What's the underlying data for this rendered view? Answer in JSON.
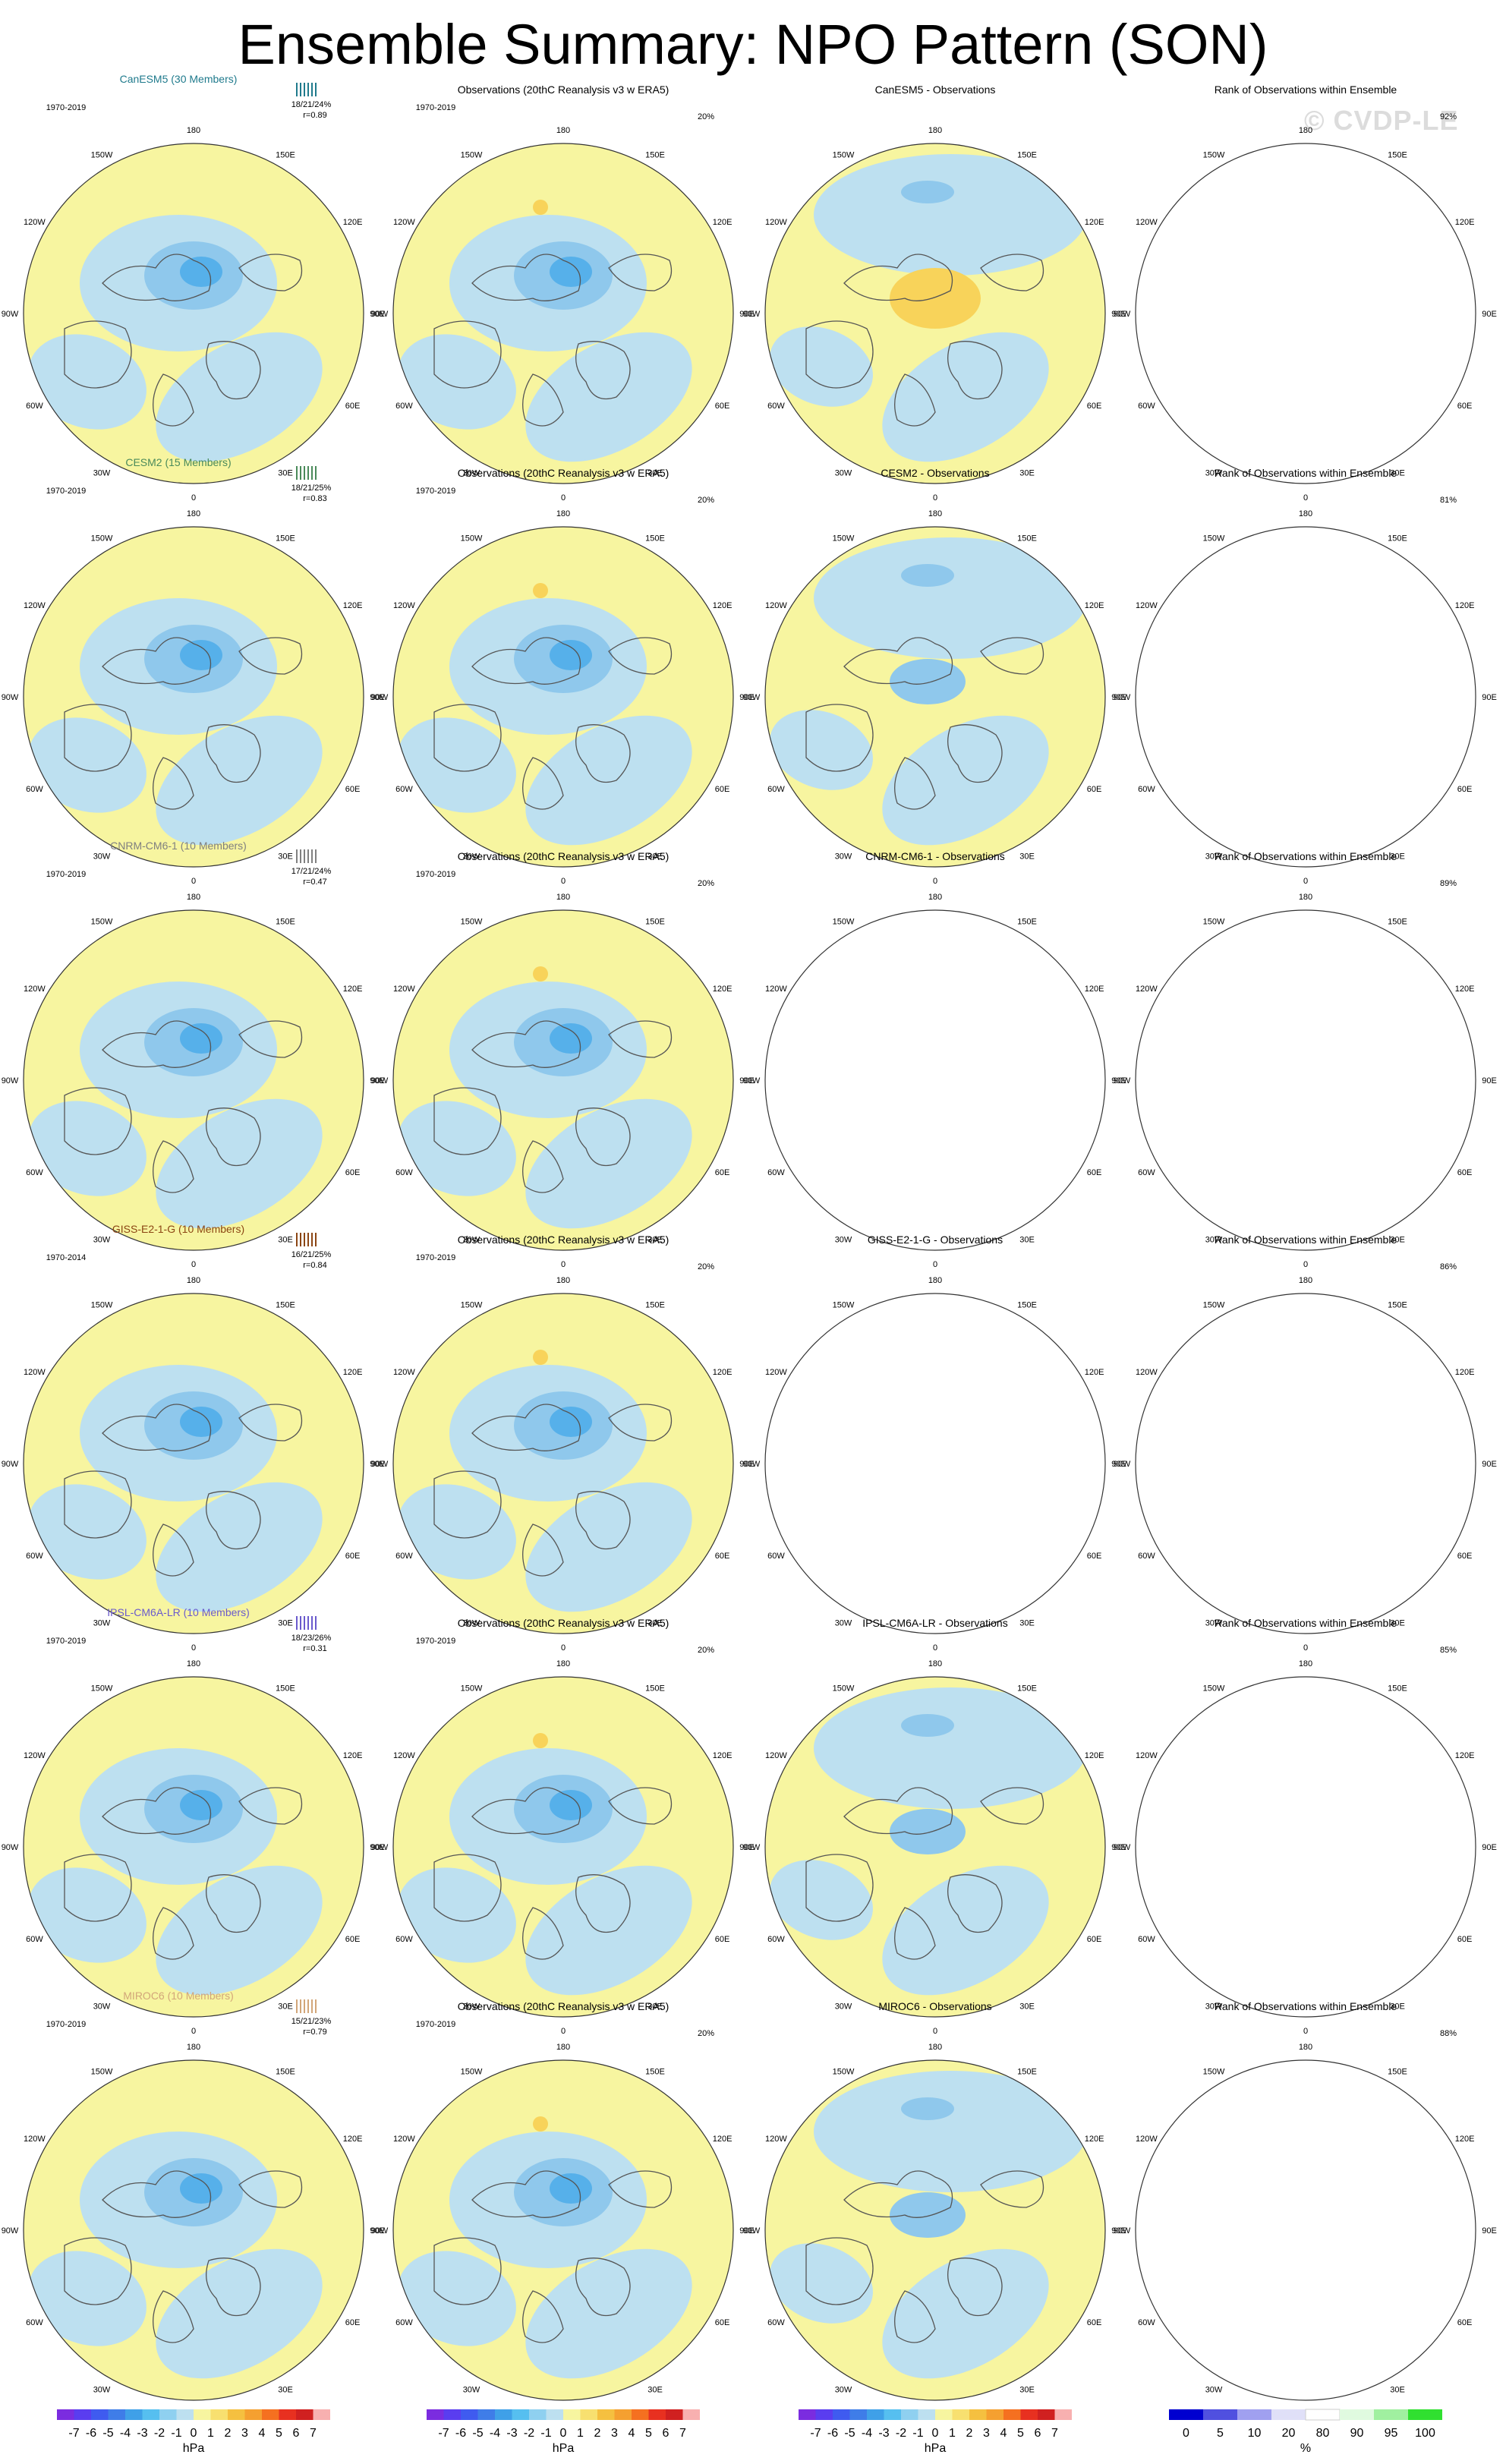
{
  "title": "Ensemble Summary: NPO Pattern (SON)",
  "watermark": "© CVDP-LE",
  "lon_labels": [
    "180",
    "150E",
    "120E",
    "90E",
    "60E",
    "30E",
    "0",
    "30W",
    "60W",
    "90W",
    "120W",
    "150W"
  ],
  "chart_data": {
    "type": "heatmap",
    "projection": "north polar stereographic",
    "rows": [
      {
        "model": "CanESM5 (30 Members)",
        "model_color": "#1f7a8c",
        "period": "1970-2019",
        "obs_period": "1970-2019",
        "stats": "18/21/24%",
        "corr": "r=0.89",
        "obs_pct": "20%",
        "diff_title": "CanESM5 - Observations",
        "rank_pct": "92%"
      },
      {
        "model": "CESM2 (15 Members)",
        "model_color": "#4a8a5a",
        "period": "1970-2019",
        "obs_period": "1970-2019",
        "stats": "18/21/25%",
        "corr": "r=0.83",
        "obs_pct": "20%",
        "diff_title": "CESM2 - Observations",
        "rank_pct": "81%"
      },
      {
        "model": "CNRM-CM6-1 (10 Members)",
        "model_color": "#808080",
        "period": "1970-2019",
        "obs_period": "1970-2019",
        "stats": "17/21/24%",
        "corr": "r=0.47",
        "obs_pct": "20%",
        "diff_title": "CNRM-CM6-1 - Observations",
        "rank_pct": "89%"
      },
      {
        "model": "GISS-E2-1-G (10 Members)",
        "model_color": "#8b4513",
        "period": "1970-2014",
        "obs_period": "1970-2019",
        "stats": "16/21/25%",
        "corr": "r=0.84",
        "obs_pct": "20%",
        "diff_title": "GISS-E2-1-G - Observations",
        "rank_pct": "86%"
      },
      {
        "model": "IPSL-CM6A-LR (10 Members)",
        "model_color": "#6a5acd",
        "period": "1970-2019",
        "obs_period": "1970-2019",
        "stats": "18/23/26%",
        "corr": "r=0.31",
        "obs_pct": "20%",
        "diff_title": "IPSL-CM6A-LR - Observations",
        "rank_pct": "85%"
      },
      {
        "model": "MIROC6 (10 Members)",
        "model_color": "#d2a679",
        "period": "1970-2019",
        "obs_period": "1970-2019",
        "stats": "15/21/23%",
        "corr": "r=0.79",
        "obs_pct": "20%",
        "diff_title": "MIROC6 - Observations",
        "rank_pct": "88%"
      }
    ],
    "obs_title": "Observations (20thC Reanalysis v3 w ERA5)",
    "rank_title": "Rank of Observations within Ensemble",
    "colorbar_hpa": {
      "ticks": [
        "-7",
        "-6",
        "-5",
        "-4",
        "-3",
        "-2",
        "-1",
        "0",
        "1",
        "2",
        "3",
        "4",
        "5",
        "6",
        "7"
      ],
      "colors": [
        "#7b2ce0",
        "#5a3df0",
        "#3f5bf0",
        "#3f7de8",
        "#3fa0e8",
        "#56bff0",
        "#8fd0f0",
        "#bde0f0",
        "#f7f5a0",
        "#f8e070",
        "#f5c040",
        "#f5a030",
        "#f57020",
        "#e83020",
        "#d02020",
        "#f8b0b0"
      ],
      "unit": "hPa"
    },
    "colorbar_rank": {
      "ticks": [
        "0",
        "5",
        "10",
        "20",
        "80",
        "90",
        "95",
        "100"
      ],
      "colors": [
        "#0000d0",
        "#5050e0",
        "#a0a0f0",
        "#e0e0f8",
        "#ffffff",
        "#e0fae0",
        "#a0f0a0",
        "#30e030"
      ],
      "unit": "%"
    }
  }
}
